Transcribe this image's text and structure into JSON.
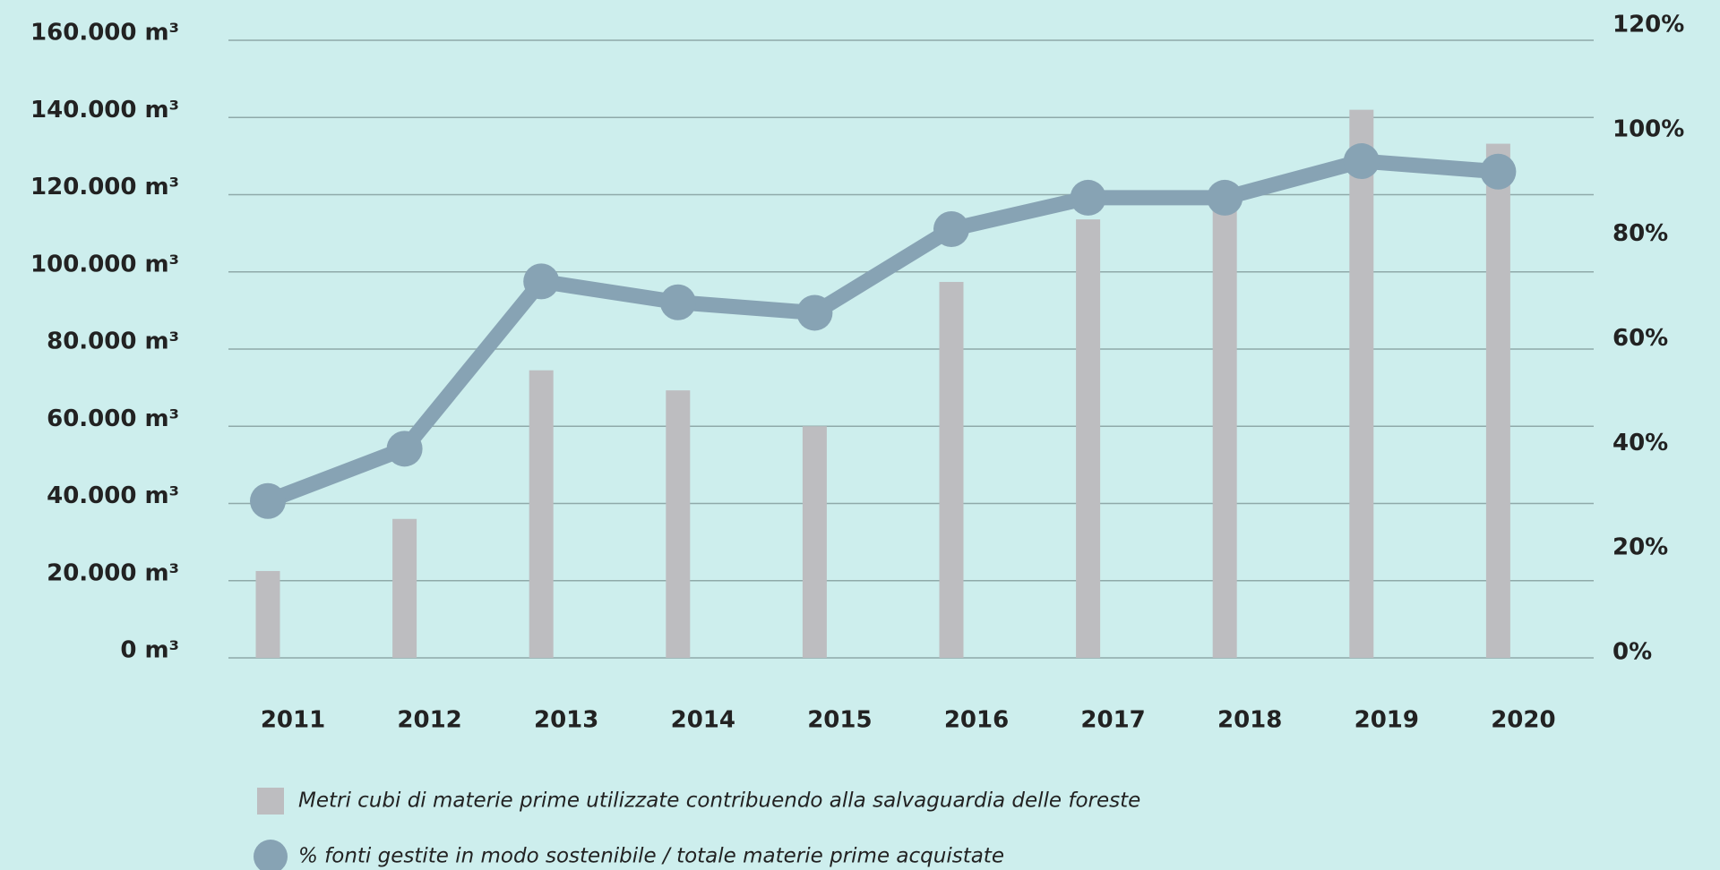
{
  "chart_data": {
    "type": "bar-line",
    "categories": [
      "2011",
      "2012",
      "2013",
      "2014",
      "2015",
      "2016",
      "2017",
      "2018",
      "2019",
      "2020"
    ],
    "series": [
      {
        "name": "Metri cubi di materie prime utilizzate contribuendo alla salvaguardia delle foreste",
        "type": "bar",
        "color": "#bdbdc0",
        "values": [
          22500,
          36000,
          74500,
          69300,
          60000,
          97400,
          113600,
          118000,
          142000,
          133200
        ]
      },
      {
        "name": "% fonti gestite in modo sostenibile / totale materie prime acquistate",
        "type": "line",
        "axis": "y2",
        "color": "#87a3b4",
        "values": [
          30,
          40,
          72,
          68,
          66,
          82,
          88,
          88,
          95,
          93
        ]
      }
    ],
    "ylim": [
      0,
      160000
    ],
    "yticks": [
      {
        "value": 0,
        "label": "0 m³"
      },
      {
        "value": 20000,
        "label": "20.000 m³"
      },
      {
        "value": 40000,
        "label": "40.000 m³"
      },
      {
        "value": 60000,
        "label": "60.000 m³"
      },
      {
        "value": 80000,
        "label": "80.000 m³"
      },
      {
        "value": 100000,
        "label": "100.000 m³"
      },
      {
        "value": 120000,
        "label": "120.000 m³"
      },
      {
        "value": 140000,
        "label": "140.000 m³"
      },
      {
        "value": 160000,
        "label": "160.000 m³"
      }
    ],
    "y2lim": [
      0,
      120
    ],
    "y2ticks": [
      {
        "value": 0,
        "label": "0%"
      },
      {
        "value": 20,
        "label": "20%"
      },
      {
        "value": 40,
        "label": "40%"
      },
      {
        "value": 60,
        "label": "60%"
      },
      {
        "value": 80,
        "label": "80%"
      },
      {
        "value": 100,
        "label": "100%"
      },
      {
        "value": 120,
        "label": "120%"
      }
    ],
    "grid": true,
    "legend": "bottom"
  }
}
